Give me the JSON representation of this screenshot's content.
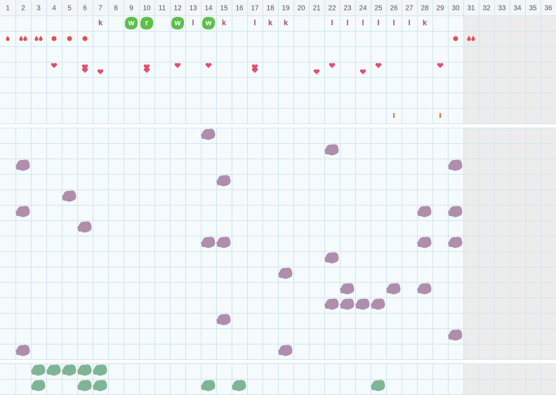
{
  "header": {
    "days": [
      1,
      2,
      3,
      4,
      5,
      6,
      7,
      8,
      9,
      10,
      11,
      12,
      13,
      14,
      15,
      16,
      17,
      18,
      19,
      20,
      21,
      22,
      23,
      24,
      25,
      26,
      27,
      28,
      29,
      30,
      31,
      32,
      33,
      34,
      35,
      36
    ]
  },
  "tracker": {
    "letters": [
      "k",
      "w",
      "r",
      "w",
      "l",
      "w",
      "k",
      "l",
      "k",
      "k",
      "l",
      "l",
      "l",
      "l",
      "l",
      "l",
      "k"
    ]
  }
}
